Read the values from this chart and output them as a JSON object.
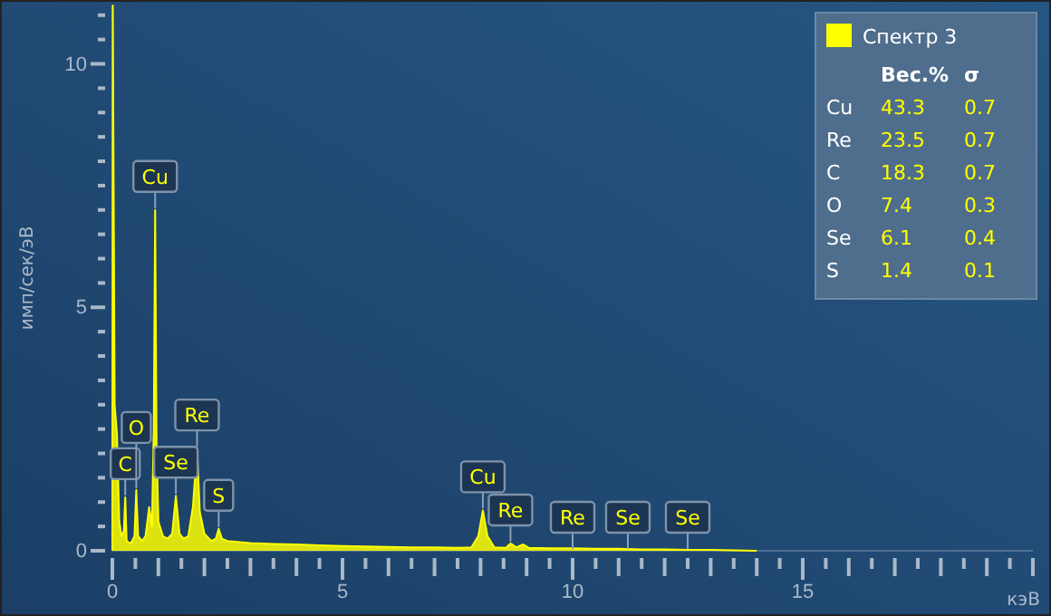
{
  "chart_data": {
    "type": "area",
    "xlabel": "кэВ",
    "ylabel": "имп/сек/эВ",
    "xlim": [
      0,
      20
    ],
    "ylim": [
      0,
      11.2
    ],
    "xticks": [
      0,
      {
        "value": 0.5,
        "label": null
      },
      {
        "value": 1,
        "label": null
      },
      {
        "value": 1.5,
        "label": null
      },
      {
        "value": 2,
        "label": null
      },
      {
        "value": 2.5,
        "label": null
      },
      {
        "value": 3,
        "label": null
      },
      {
        "value": 3.5,
        "label": null
      },
      {
        "value": 4,
        "label": null
      },
      {
        "value": 4.5,
        "label": null
      },
      5,
      {
        "value": 5.5,
        "label": null
      },
      {
        "value": 6,
        "label": null
      },
      {
        "value": 6.5,
        "label": null
      },
      {
        "value": 7,
        "label": null
      },
      {
        "value": 7.5,
        "label": null
      },
      {
        "value": 8,
        "label": null
      },
      {
        "value": 8.5,
        "label": null
      },
      {
        "value": 9,
        "label": null
      },
      {
        "value": 9.5,
        "label": null
      },
      10,
      {
        "value": 10.5,
        "label": null
      },
      {
        "value": 11,
        "label": null
      },
      {
        "value": 11.5,
        "label": null
      },
      {
        "value": 12,
        "label": null
      },
      {
        "value": 12.5,
        "label": null
      },
      {
        "value": 13,
        "label": null
      },
      {
        "value": 13.5,
        "label": null
      },
      {
        "value": 14,
        "label": null
      },
      {
        "value": 14.5,
        "label": null
      },
      15,
      {
        "value": 15.5,
        "label": null
      },
      {
        "value": 16,
        "label": null
      },
      {
        "value": 16.5,
        "label": null
      },
      {
        "value": 17,
        "label": null
      },
      {
        "value": 17.5,
        "label": null
      },
      {
        "value": 18,
        "label": null
      },
      {
        "value": 18.5,
        "label": null
      },
      {
        "value": 19,
        "label": null
      },
      {
        "value": 19.5,
        "label": null
      },
      {
        "value": 20,
        "label": null
      }
    ],
    "yticks": [
      0,
      {
        "value": 0.5,
        "label": null
      },
      {
        "value": 1,
        "label": null
      },
      {
        "value": 1.5,
        "label": null
      },
      {
        "value": 2,
        "label": null
      },
      {
        "value": 2.5,
        "label": null
      },
      {
        "value": 3,
        "label": null
      },
      {
        "value": 3.5,
        "label": null
      },
      {
        "value": 4,
        "label": null
      },
      {
        "value": 4.5,
        "label": null
      },
      5,
      {
        "value": 5.5,
        "label": null
      },
      {
        "value": 6,
        "label": null
      },
      {
        "value": 6.5,
        "label": null
      },
      {
        "value": 7,
        "label": null
      },
      {
        "value": 7.5,
        "label": null
      },
      {
        "value": 8,
        "label": null
      },
      {
        "value": 8.5,
        "label": null
      },
      {
        "value": 9,
        "label": null
      },
      {
        "value": 9.5,
        "label": null
      },
      10,
      {
        "value": 10.5,
        "label": null
      },
      {
        "value": 11,
        "label": null
      }
    ],
    "legend": "top right",
    "series": [
      {
        "name": "Спектр 3",
        "color": "#ffff00",
        "x": [
          0,
          0.01,
          0.05,
          0.1,
          0.15,
          0.2,
          0.25,
          0.28,
          0.31,
          0.4,
          0.48,
          0.52,
          0.56,
          0.65,
          0.72,
          0.8,
          0.86,
          0.9,
          0.93,
          0.96,
          1.0,
          1.1,
          1.2,
          1.3,
          1.38,
          1.46,
          1.55,
          1.65,
          1.75,
          1.84,
          1.9,
          2.0,
          2.15,
          2.25,
          2.31,
          2.38,
          2.5,
          3.0,
          3.5,
          4.0,
          4.5,
          5.0,
          5.5,
          6.0,
          6.5,
          7.0,
          7.5,
          7.8,
          7.95,
          8.05,
          8.15,
          8.3,
          8.55,
          8.65,
          8.78,
          8.93,
          9.05,
          9.5,
          10.0,
          10.5,
          11,
          11.5,
          12,
          12.5,
          13,
          13.5,
          14
        ],
        "values": [
          0,
          11.2,
          3,
          2.4,
          0.6,
          0.3,
          0.4,
          1.1,
          0.2,
          0.15,
          0.3,
          1.25,
          0.3,
          0.2,
          0.3,
          0.9,
          0.5,
          2.5,
          7.0,
          2.2,
          0.6,
          0.3,
          0.25,
          0.35,
          1.13,
          0.35,
          0.25,
          0.3,
          0.9,
          2.1,
          0.8,
          0.35,
          0.2,
          0.25,
          0.45,
          0.25,
          0.2,
          0.16,
          0.14,
          0.13,
          0.11,
          0.1,
          0.09,
          0.08,
          0.07,
          0.07,
          0.06,
          0.07,
          0.3,
          0.83,
          0.3,
          0.07,
          0.06,
          0.15,
          0.07,
          0.13,
          0.06,
          0.05,
          0.05,
          0.04,
          0.04,
          0.03,
          0.03,
          0.02,
          0.02,
          0.01,
          0
        ]
      }
    ],
    "annotations": [
      {
        "text": "C",
        "x": 0.28,
        "y": 1.1
      },
      {
        "text": "O",
        "x": 0.52,
        "y": 1.25
      },
      {
        "text": "Cu",
        "x": 0.93,
        "y": 7.0
      },
      {
        "text": "Se",
        "x": 1.38,
        "y": 1.13
      },
      {
        "text": "Re",
        "x": 1.84,
        "y": 2.1
      },
      {
        "text": "S",
        "x": 2.31,
        "y": 0.45
      },
      {
        "text": "Cu",
        "x": 8.05,
        "y": 0.83
      },
      {
        "text": "Re",
        "x": 8.65,
        "y": 0.15
      },
      {
        "text": "Re",
        "x": 10.0,
        "y": 0
      },
      {
        "text": "Se",
        "x": 11.2,
        "y": 0
      },
      {
        "text": "Se",
        "x": 12.5,
        "y": 0
      },
      "Вес.%",
      "σ",
      "Cu",
      "43.3",
      "0.7",
      "Re",
      "23.5",
      "0.7",
      "C",
      "18.3",
      "0.7",
      "O",
      "7.4",
      "0.3",
      "Se",
      "6.1",
      "0.4",
      "S",
      "1.4",
      "0.1"
    ]
  }
}
